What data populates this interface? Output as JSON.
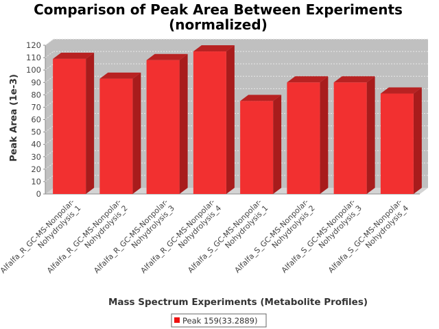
{
  "chart_data": {
    "type": "bar",
    "title": [
      "Comparison of Peak Area Between Experiments",
      "(normalized)"
    ],
    "xlabel": "Mass Spectrum Experiments (Metabolite Profiles)",
    "ylabel": "Peak Area (1e-3)",
    "ylim": [
      0,
      120
    ],
    "yticks": [
      0,
      10,
      20,
      30,
      40,
      50,
      60,
      70,
      80,
      90,
      100,
      110,
      120
    ],
    "grid": true,
    "legend_position": "bottom",
    "colors": {
      "bar": "#f23030",
      "bar_top": "#b82222",
      "bar_side": "#a81c1c",
      "plot_bg": "#c0c0c0",
      "floor": "#d4d4d4",
      "grid": "#e8e8e8"
    },
    "categories": [
      [
        "Alfalfa_R_GC-MS-Nonpolar-",
        "Nohydrolysis_1"
      ],
      [
        "Alfalfa_R_GC-MS-Nonpolar-",
        "Nohydrolysis_2"
      ],
      [
        "Alfalfa_R_GC-MS-Nonpolar-",
        "Nohydrolysis_3"
      ],
      [
        "Alfalfa_R_GC-MS-Nonpolar-",
        "Nohydrolysis_4"
      ],
      [
        "Alfalfa_S_GC-MS-Nonpolar-",
        "Nohydrolysis_1"
      ],
      [
        "Alfalfa_S_GC-MS-Nonpolar-",
        "Nohydrolysis_2"
      ],
      [
        "Alfalfa_S_GC-MS-Nonpolar-",
        "Nohydrolysis_3"
      ],
      [
        "Alfalfa_S_GC-MS-Nonpolar-",
        "Nohydrolysis_4"
      ]
    ],
    "series": [
      {
        "name": "Peak 159(33.2889)",
        "values": [
          109,
          93,
          108,
          115,
          75,
          90,
          90,
          81
        ]
      }
    ]
  }
}
